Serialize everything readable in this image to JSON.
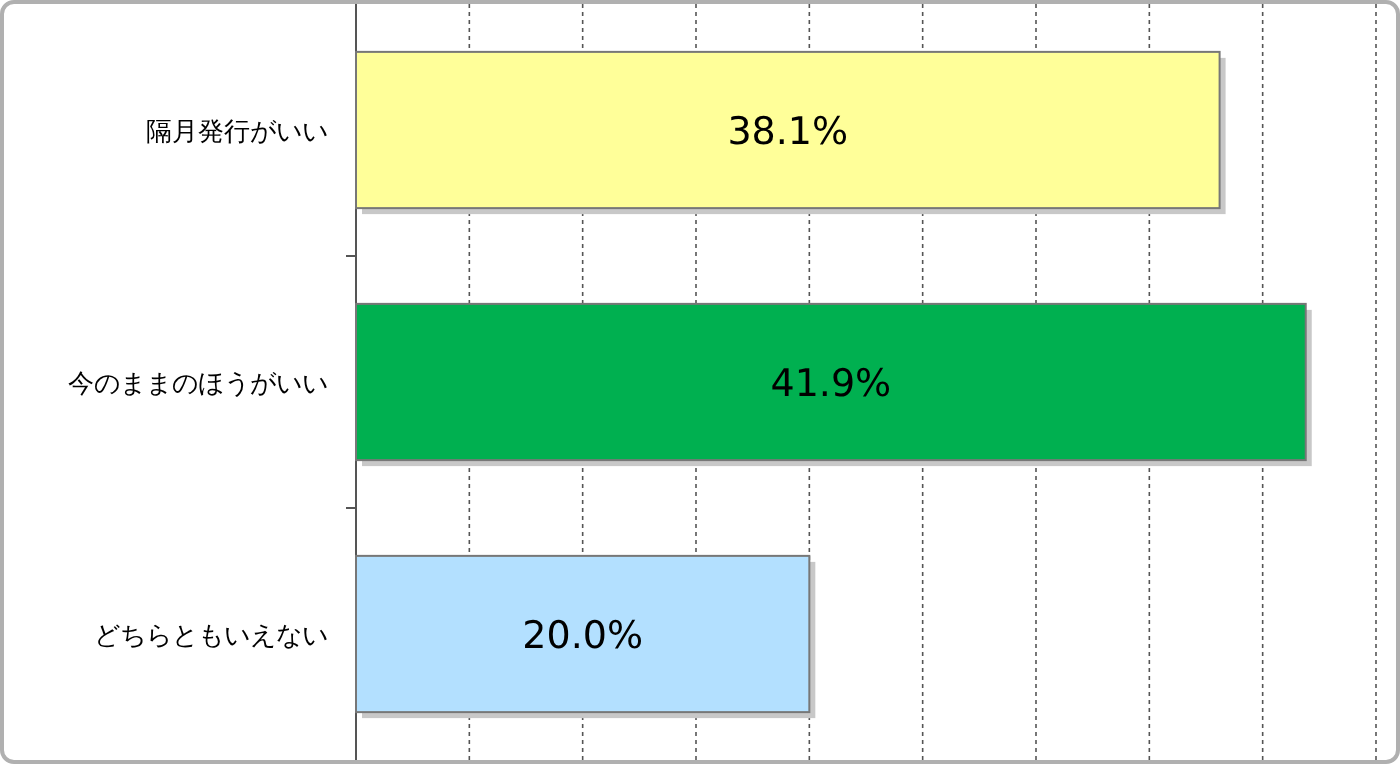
{
  "chart_data": {
    "type": "bar",
    "orientation": "horizontal",
    "categories": [
      "隔月発行がいい",
      "今のままのほうがいい",
      "どちらともいえない"
    ],
    "values": [
      38.1,
      41.9,
      20.0
    ],
    "colors": [
      "#ffff99",
      "#00b050",
      "#b3e0ff"
    ],
    "value_labels": [
      "38.1%",
      "41.9%",
      "20.0%"
    ],
    "xlim": [
      0,
      45
    ],
    "xticks": [
      {
        "value": 0,
        "label": null
      },
      {
        "value": 5,
        "label": null
      },
      {
        "value": 10,
        "label": null
      },
      {
        "value": 15,
        "label": null
      },
      {
        "value": 20,
        "label": null
      },
      {
        "value": 25,
        "label": null
      },
      {
        "value": 30,
        "label": null
      },
      {
        "value": 35,
        "label": null
      },
      {
        "value": 40,
        "label": null
      },
      {
        "value": 45,
        "label": null
      }
    ],
    "tick_labels": "y",
    "grid": "x"
  }
}
